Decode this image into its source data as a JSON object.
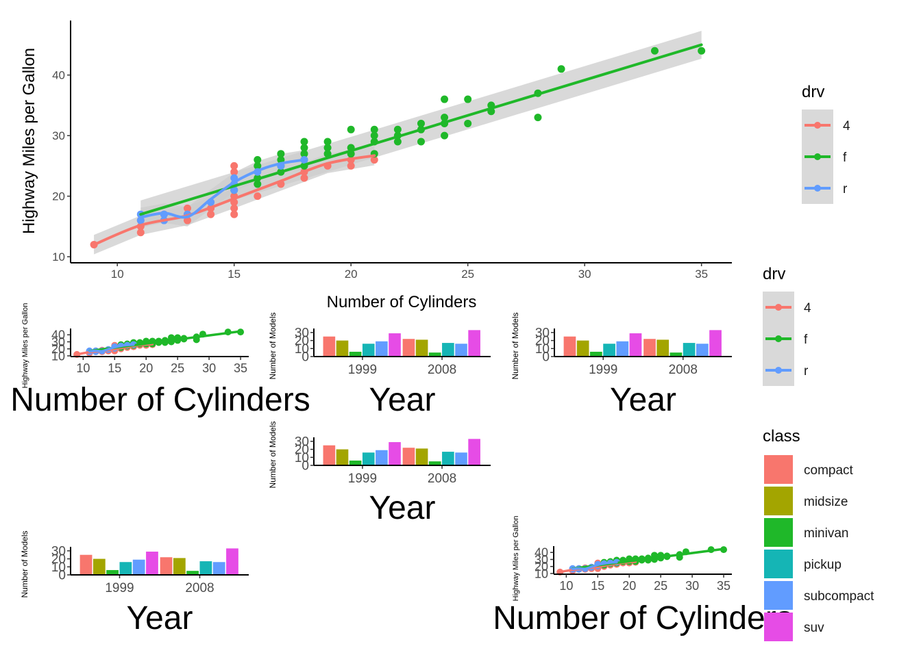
{
  "colors": {
    "drv": {
      "4": "#F8766D",
      "f": "#1FB829",
      "r": "#619CFF"
    },
    "class": {
      "compact": "#F8766D",
      "midsize": "#A3A500",
      "minivan": "#1FB829",
      "pickup": "#15B5B5",
      "subcompact": "#619CFF",
      "suv": "#E64CE6"
    },
    "ribbon": "#cccccc",
    "legend_key_bg": "#d9d9d9"
  },
  "chart_data": [
    {
      "type": "scatter",
      "panel": "main-scatter",
      "xlabel": "Number of Cylinders",
      "ylabel": "Highway Miles per Gallon",
      "xlim": [
        8,
        36.3
      ],
      "ylim": [
        9,
        49
      ],
      "x_ticks": [
        10,
        15,
        20,
        25,
        30,
        35
      ],
      "y_ticks": [
        10,
        20,
        30,
        40
      ],
      "grid": false,
      "legend_position": "right",
      "series": [
        {
          "name": "4",
          "points": [
            [
              9,
              12
            ],
            [
              11,
              14
            ],
            [
              11,
              15
            ],
            [
              11,
              16
            ],
            [
              12,
              16
            ],
            [
              12,
              17
            ],
            [
              13,
              16
            ],
            [
              13,
              17
            ],
            [
              13,
              18
            ],
            [
              14,
              17
            ],
            [
              14,
              18
            ],
            [
              14,
              19
            ],
            [
              15,
              17
            ],
            [
              15,
              18
            ],
            [
              15,
              19
            ],
            [
              15,
              20
            ],
            [
              15,
              22
            ],
            [
              15,
              24
            ],
            [
              15,
              25
            ],
            [
              16,
              20
            ],
            [
              17,
              22
            ],
            [
              18,
              23
            ],
            [
              18,
              24
            ],
            [
              19,
              25
            ],
            [
              20,
              25
            ],
            [
              20,
              26
            ],
            [
              21,
              26
            ]
          ],
          "smooth": [
            [
              9,
              12
            ],
            [
              11,
              15.2
            ],
            [
              13,
              16.8
            ],
            [
              15,
              19.6
            ],
            [
              17,
              22.5
            ],
            [
              19,
              25.4
            ],
            [
              21,
              26.7
            ]
          ]
        },
        {
          "name": "f",
          "points": [
            [
              15,
              21
            ],
            [
              16,
              22
            ],
            [
              16,
              23
            ],
            [
              16,
              25
            ],
            [
              16,
              26
            ],
            [
              17,
              24
            ],
            [
              17,
              25
            ],
            [
              17,
              26
            ],
            [
              17,
              27
            ],
            [
              18,
              25
            ],
            [
              18,
              26
            ],
            [
              18,
              27
            ],
            [
              18,
              28
            ],
            [
              18,
              29
            ],
            [
              19,
              27
            ],
            [
              19,
              28
            ],
            [
              19,
              29
            ],
            [
              20,
              27
            ],
            [
              20,
              28
            ],
            [
              20,
              31
            ],
            [
              21,
              27
            ],
            [
              21,
              29
            ],
            [
              21,
              30
            ],
            [
              21,
              31
            ],
            [
              22,
              29
            ],
            [
              22,
              30
            ],
            [
              22,
              31
            ],
            [
              23,
              29
            ],
            [
              23,
              31
            ],
            [
              23,
              32
            ],
            [
              24,
              30
            ],
            [
              24,
              32
            ],
            [
              24,
              33
            ],
            [
              24,
              36
            ],
            [
              25,
              32
            ],
            [
              25,
              36
            ],
            [
              26,
              34
            ],
            [
              26,
              35
            ],
            [
              28,
              33
            ],
            [
              28,
              37
            ],
            [
              29,
              41
            ],
            [
              33,
              44
            ],
            [
              35,
              44
            ]
          ],
          "smooth": [
            [
              11,
              17
            ],
            [
              35,
              45
            ]
          ]
        },
        {
          "name": "r",
          "points": [
            [
              11,
              16
            ],
            [
              11,
              17
            ],
            [
              12,
              16
            ],
            [
              12,
              17
            ],
            [
              13,
              17
            ],
            [
              14,
              19
            ],
            [
              15,
              21
            ],
            [
              15,
              22
            ],
            [
              15,
              23
            ],
            [
              16,
              24
            ],
            [
              17,
              25
            ],
            [
              18,
              26
            ]
          ],
          "smooth": [
            [
              11,
              16.5
            ],
            [
              12,
              17.2
            ],
            [
              13,
              16.6
            ],
            [
              14,
              19.5
            ],
            [
              15,
              22.3
            ],
            [
              16,
              24.2
            ],
            [
              17,
              25.4
            ],
            [
              18,
              26
            ]
          ]
        }
      ]
    },
    {
      "type": "bar",
      "panel": "bar-year",
      "xlabel": "Year",
      "ylabel": "Number of Models",
      "categories": [
        "1999",
        "2008"
      ],
      "y_ticks": [
        0,
        10,
        20,
        30
      ],
      "ylim": [
        0,
        35
      ],
      "legend_position": "right",
      "series": [
        {
          "name": "compact",
          "values": [
            25,
            22
          ]
        },
        {
          "name": "midsize",
          "values": [
            20,
            21
          ]
        },
        {
          "name": "minivan",
          "values": [
            6,
            5
          ]
        },
        {
          "name": "pickup",
          "values": [
            16,
            17
          ]
        },
        {
          "name": "subcompact",
          "values": [
            19,
            16
          ]
        },
        {
          "name": "suv",
          "values": [
            29,
            33
          ]
        }
      ]
    }
  ],
  "legends": {
    "drv_title": "drv",
    "drv_items": [
      "4",
      "f",
      "r"
    ],
    "class_title": "class",
    "class_items": [
      "compact",
      "midsize",
      "minivan",
      "pickup",
      "subcompact",
      "suv"
    ]
  }
}
